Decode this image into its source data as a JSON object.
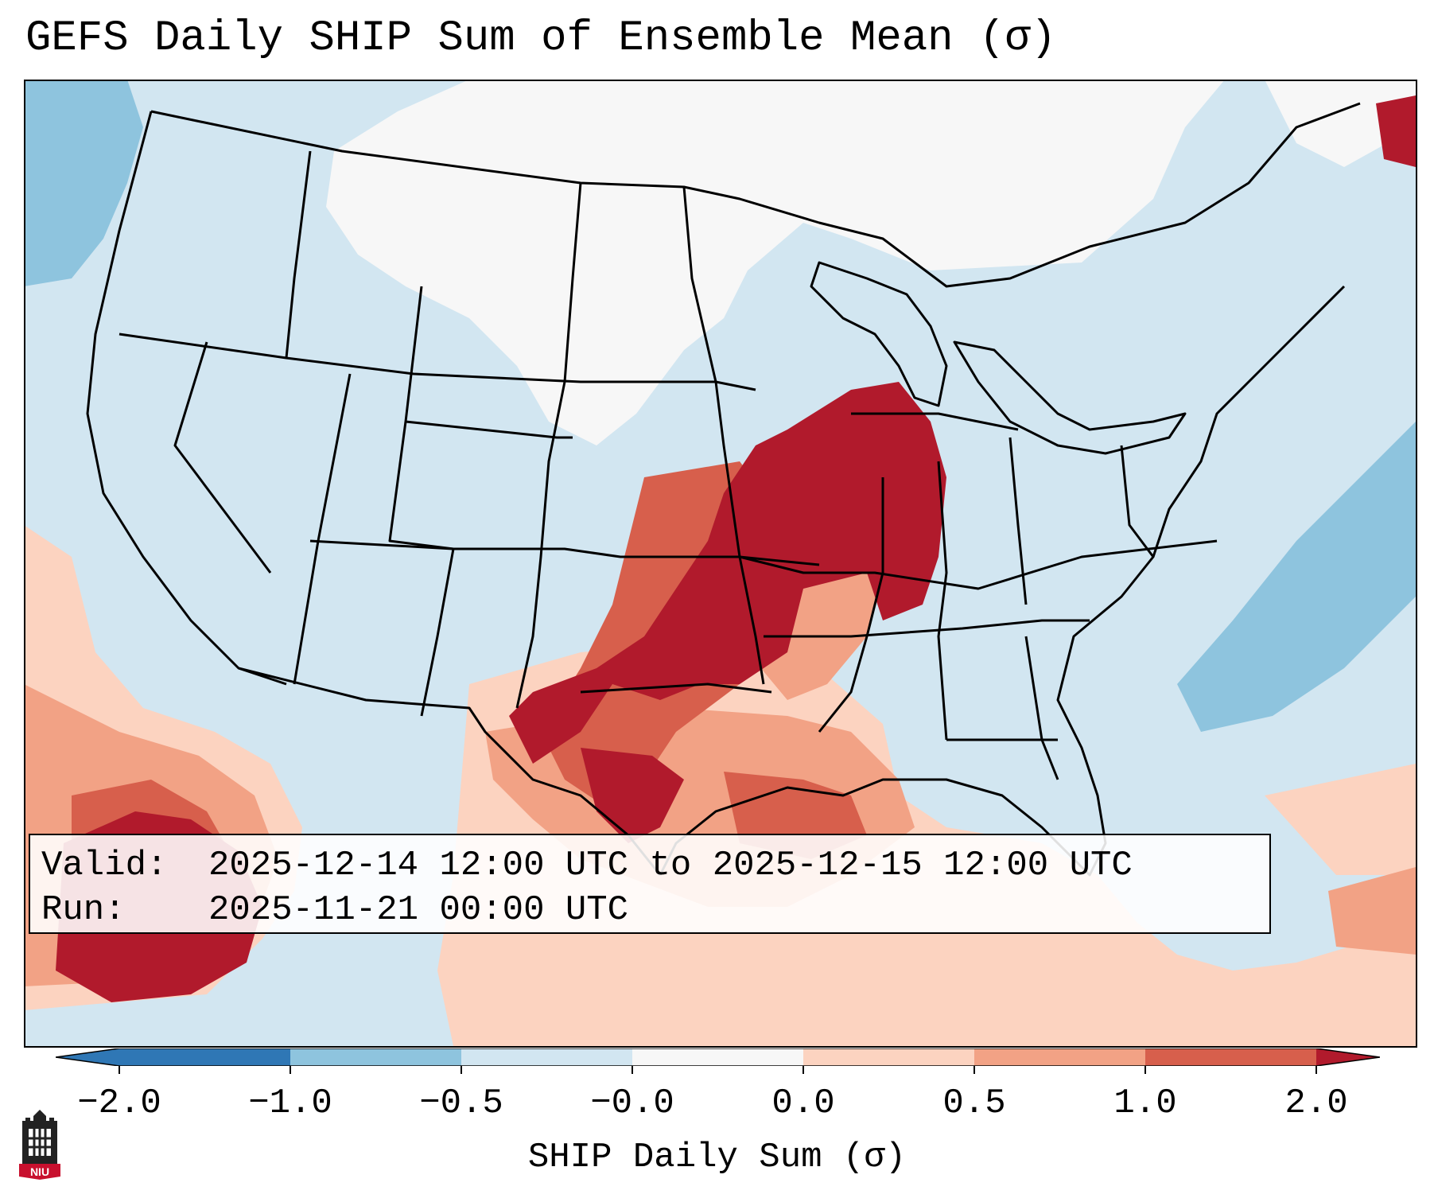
{
  "title": "GEFS Daily SHIP Sum of Ensemble Mean (σ)",
  "valid": {
    "label": "Valid:",
    "value": "2025-12-14 12:00 UTC to 2025-12-15 12:00 UTC"
  },
  "run": {
    "label": "Run:",
    "value": "2025-11-21 00:00 UTC"
  },
  "colorbar": {
    "label": "SHIP Daily Sum (σ)",
    "ticks": [
      "−2.0",
      "−1.0",
      "−0.5",
      "−0.0",
      "0.0",
      "0.5",
      "1.0",
      "2.0"
    ],
    "colors": [
      "#2f77b5",
      "#8ec4de",
      "#d2e6f1",
      "#f7f7f7",
      "#fcd3c0",
      "#f2a285",
      "#d75f4c",
      "#b11a2c"
    ],
    "extend": "both"
  },
  "map": {
    "region": "Continental United States",
    "field": "SHIP Daily Sum anomaly",
    "background_color": "#d2e6f1"
  },
  "logo": {
    "text": "NIU",
    "icon": "university-tower-icon"
  }
}
